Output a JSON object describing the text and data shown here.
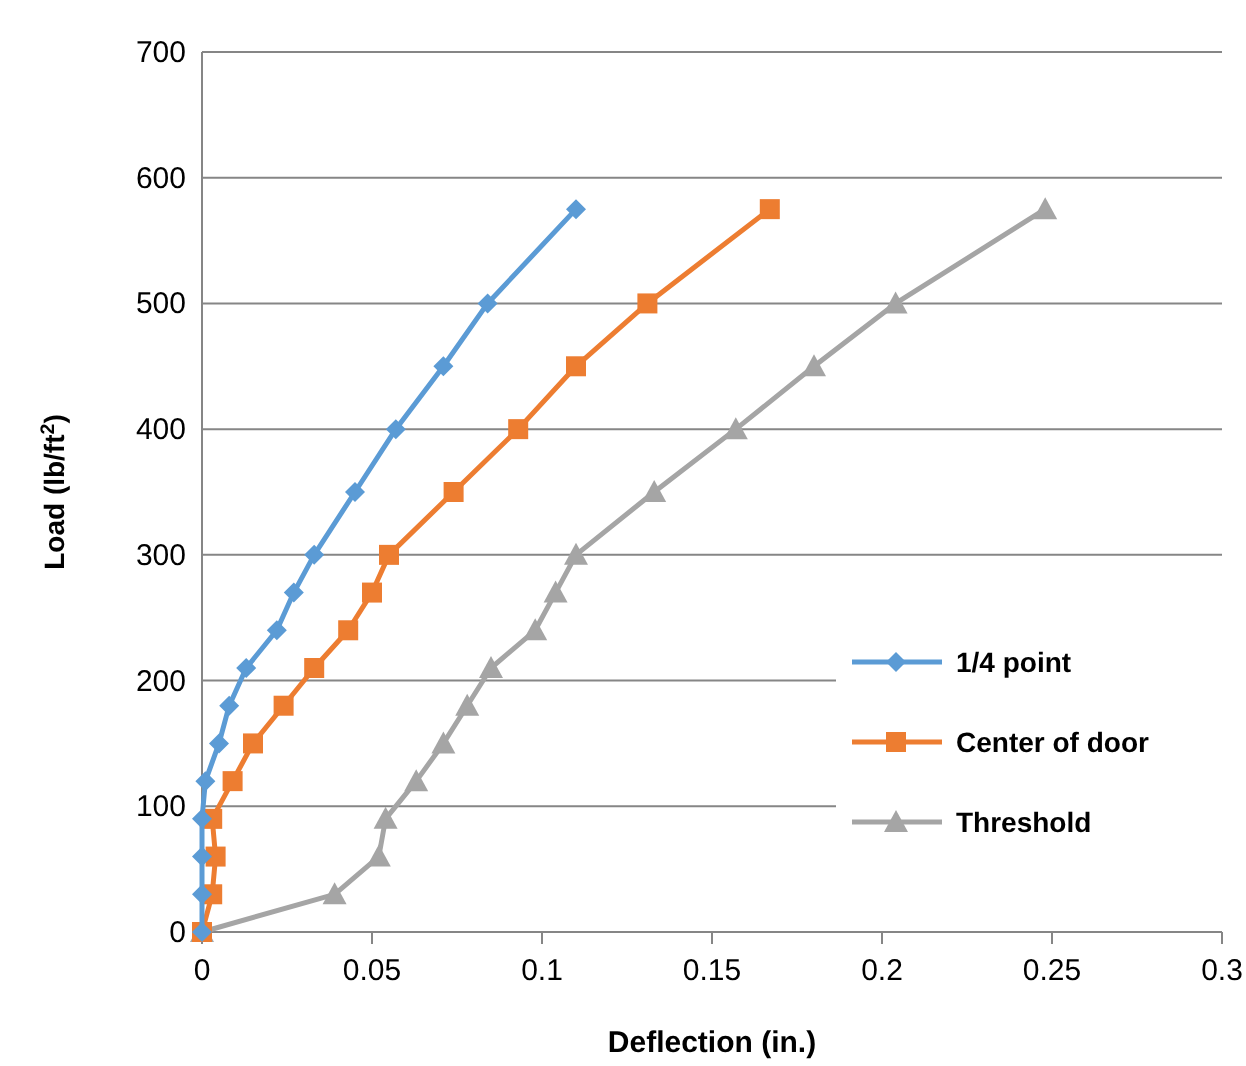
{
  "chart_data": {
    "type": "line",
    "xlabel": "Deflection (in.)",
    "ylabel": "Load (lb/ft$^{2}$)",
    "xlim": [
      0,
      0.3
    ],
    "xticks": [
      0,
      0.05,
      0.1,
      0.15,
      0.2,
      0.25,
      0.3
    ],
    "ylim": [
      0,
      700
    ],
    "yticks": [
      0,
      100,
      200,
      300,
      400,
      500,
      600,
      700
    ],
    "grid": "y",
    "legend": "right",
    "line_style": "solid",
    "series": [
      {
        "name": "1/4 point",
        "color": "#5b9bd5",
        "marker": "diamond",
        "x": [
          0,
          0,
          0,
          0,
          0.001,
          0.005,
          0.008,
          0.013,
          0.022,
          0.027,
          0.033,
          0.045,
          0.057,
          0.071,
          0.084,
          0.11
        ],
        "values": [
          0,
          30,
          60,
          90,
          120,
          150,
          180,
          210,
          240,
          270,
          300,
          350,
          400,
          450,
          500,
          575
        ]
      },
      {
        "name": "Center of door",
        "color": "#ed7d31",
        "marker": "square",
        "x": [
          0,
          0.003,
          0.004,
          0.003,
          0.009,
          0.015,
          0.024,
          0.033,
          0.043,
          0.05,
          0.055,
          0.074,
          0.093,
          0.11,
          0.131,
          0.167
        ],
        "values": [
          0,
          30,
          60,
          90,
          120,
          150,
          180,
          210,
          240,
          270,
          300,
          350,
          400,
          450,
          500,
          575
        ]
      },
      {
        "name": "Threshold",
        "color": "#a5a5a5",
        "marker": "triangle",
        "x": [
          0,
          0.039,
          0.052,
          0.054,
          0.063,
          0.071,
          0.078,
          0.085,
          0.098,
          0.104,
          0.11,
          0.133,
          0.157,
          0.18,
          0.204,
          0.248
        ],
        "values": [
          0,
          30,
          60,
          90,
          120,
          150,
          180,
          210,
          240,
          270,
          300,
          350,
          400,
          450,
          500,
          575
        ]
      }
    ]
  }
}
